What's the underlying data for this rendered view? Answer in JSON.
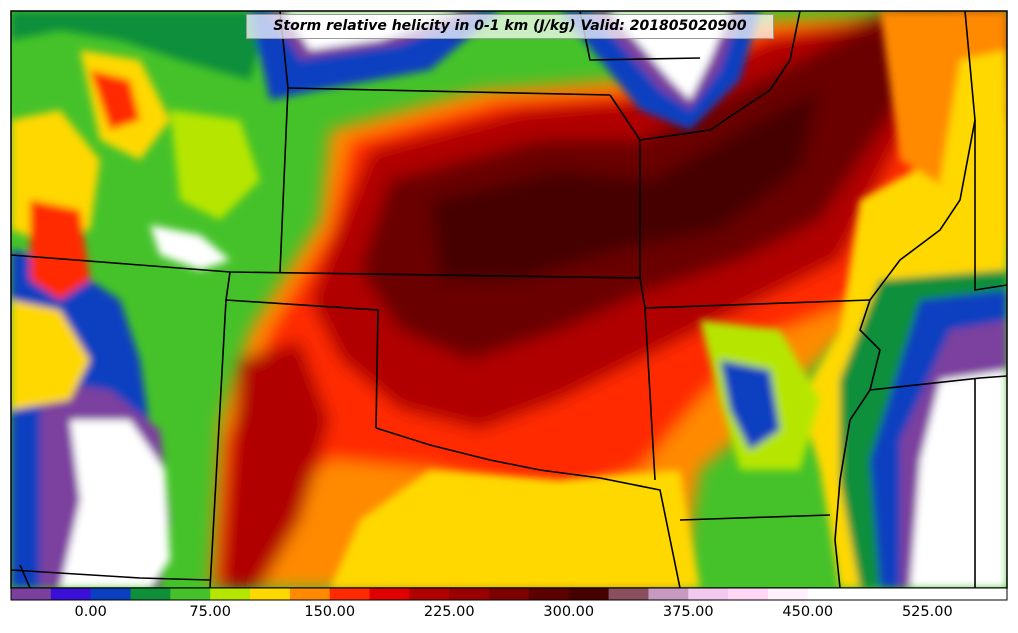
{
  "title": "Storm relative helicity in 0-1 km (J/kg) Valid: 201805020900",
  "colorbar": {
    "ticks": [
      "0.00",
      "75.00",
      "150.00",
      "225.00",
      "300.00",
      "375.00",
      "450.00",
      "525.00"
    ],
    "tick_values": [
      0,
      75,
      150,
      225,
      300,
      375,
      450,
      525
    ],
    "min": -50,
    "max": 575,
    "step": 25,
    "colors": [
      "#7b3f9e",
      "#3a0fd6",
      "#0a3fc0",
      "#0e8f3a",
      "#45c22a",
      "#b6e600",
      "#ffd800",
      "#ff8a00",
      "#ff2a00",
      "#e00000",
      "#b00000",
      "#9a0000",
      "#7c0000",
      "#5c0000",
      "#470000",
      "#8a4f5e",
      "#c99ac0",
      "#f2c8ec",
      "#ffd7f5",
      "#fff0fb",
      "#ffffff",
      "#ffffff",
      "#ffffff",
      "#ffffff",
      "#ffffff"
    ]
  },
  "map_colors": {
    "land_low": "#ffffff",
    "negative": "#7b3f9e",
    "low": "#3a0fd6",
    "blue": "#0a3fc0",
    "green": "#0e8f3a",
    "lightgreen": "#45c22a",
    "yellowgreen": "#b6e600",
    "yellow": "#ffd800",
    "orange": "#ff8a00",
    "red": "#ff2a00",
    "darkred": "#b00000",
    "maroon": "#6a0000",
    "border": "#000000"
  }
}
